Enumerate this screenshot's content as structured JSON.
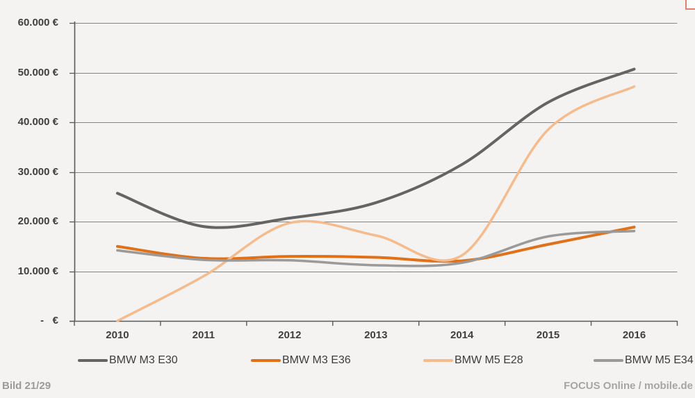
{
  "page": {
    "background": "#f4f3f1",
    "footer_left": "Bild 21/29",
    "footer_right": "FOCUS Online / mobile.de",
    "corner_marker_color": "#e4806f"
  },
  "chart_data": {
    "type": "line",
    "title": "",
    "xlabel": "",
    "ylabel": "",
    "categories": [
      "2010",
      "2011",
      "2012",
      "2013",
      "2014",
      "2015",
      "2016"
    ],
    "series": [
      {
        "name": "BMW M3 E30",
        "color": "#646464",
        "width": 4,
        "values": [
          25700,
          19000,
          20700,
          23800,
          31500,
          44000,
          50700
        ]
      },
      {
        "name": "BMW M3 E36",
        "color": "#e07119",
        "width": 4,
        "values": [
          15000,
          12600,
          13000,
          12800,
          12100,
          15400,
          18900
        ]
      },
      {
        "name": "BMW M5 E28",
        "color": "#f6bb8c",
        "width": 3.5,
        "values": [
          0,
          9000,
          19700,
          17200,
          13200,
          38500,
          47200
        ]
      },
      {
        "name": "BMW M5 E34",
        "color": "#9a9a9a",
        "width": 3.5,
        "values": [
          14200,
          12300,
          12200,
          11200,
          11700,
          17000,
          18100
        ]
      }
    ],
    "ylim": [
      0,
      60000
    ],
    "y_ticks": [
      {
        "value": 60000,
        "label": "60.000 €"
      },
      {
        "value": 50000,
        "label": "50.000 €"
      },
      {
        "value": 40000,
        "label": "40.000 €"
      },
      {
        "value": 30000,
        "label": "30.000 €"
      },
      {
        "value": 20000,
        "label": "20.000 €"
      },
      {
        "value": 10000,
        "label": "10.000 €"
      },
      {
        "value": 0,
        "label": "-   €"
      }
    ],
    "grid": true,
    "smoothed_lines": true,
    "legend_position": "bottom",
    "axis_color": "#595959",
    "grid_color": "#848484",
    "label_color": "#3f3f3f"
  }
}
